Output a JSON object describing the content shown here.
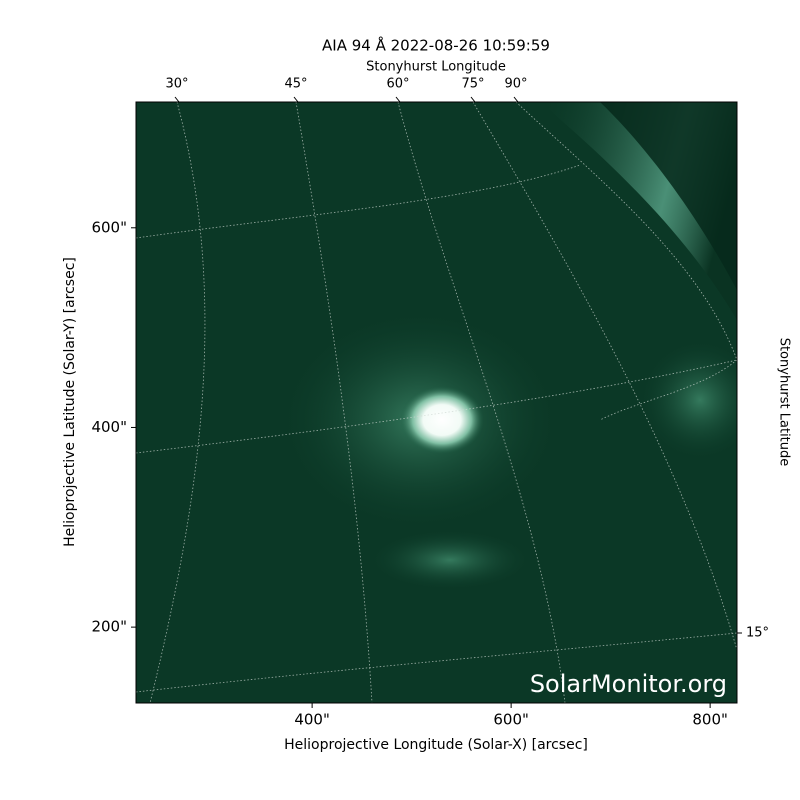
{
  "chart_data": {
    "type": "image",
    "title": "AIA 94 Å 2022-08-26 10:59:59",
    "xlabel": "Helioprojective Longitude (Solar-X) [arcsec]",
    "ylabel": "Helioprojective Latitude (Solar-Y) [arcsec]",
    "top_axis_label": "Stonyhurst Longitude",
    "right_axis_label": "Stonyhurst Latitude",
    "xlim": [
      223,
      827
    ],
    "ylim": [
      124,
      726
    ],
    "xticks": [
      {
        "value": 400,
        "label": "400\""
      },
      {
        "value": 600,
        "label": "600\""
      },
      {
        "value": 800,
        "label": "800\""
      }
    ],
    "yticks": [
      {
        "value": 200,
        "label": "200\""
      },
      {
        "value": 400,
        "label": "400\""
      },
      {
        "value": 600,
        "label": "600\""
      }
    ],
    "top_ticks": [
      {
        "value": 30,
        "label": "30°"
      },
      {
        "value": 45,
        "label": "45°"
      },
      {
        "value": 60,
        "label": "60°"
      },
      {
        "value": 75,
        "label": "75°"
      },
      {
        "value": 90,
        "label": "90°"
      }
    ],
    "right_ticks": [
      {
        "value": 15,
        "label": "15°"
      }
    ],
    "watermark": "SolarMonitor.org"
  }
}
